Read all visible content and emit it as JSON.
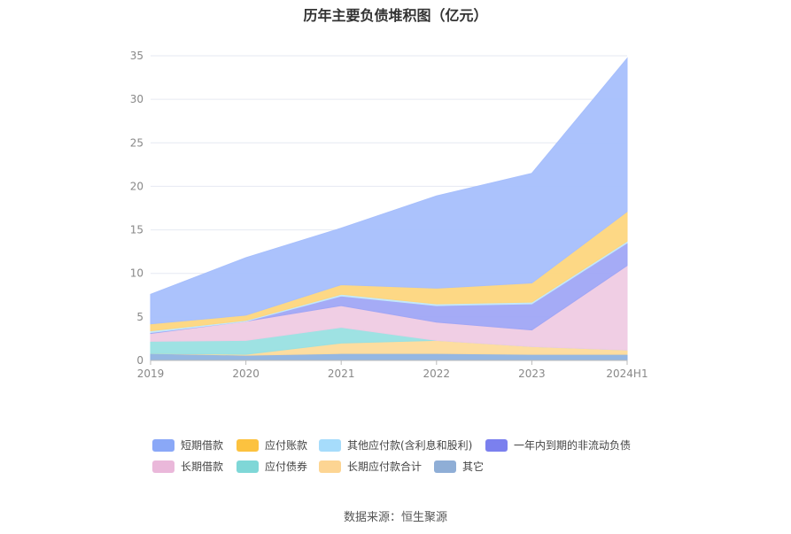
{
  "title": "历年主要负债堆积图（亿元）",
  "source": "数据来源：恒生聚源",
  "chart_data": {
    "type": "area",
    "stacked": true,
    "categories": [
      "2019",
      "2020",
      "2021",
      "2022",
      "2023",
      "2024H1"
    ],
    "ylim": [
      0,
      35
    ],
    "yticks": [
      0,
      5,
      10,
      15,
      20,
      25,
      30,
      35
    ],
    "grid": true,
    "legend_position": "bottom",
    "series": [
      {
        "name": "其它",
        "color": "#8fb3e0",
        "values": [
          0.8,
          0.6,
          0.8,
          0.8,
          0.7,
          0.7
        ]
      },
      {
        "name": "长期应付款合计",
        "color": "#fddb9b",
        "values": [
          0.0,
          0.1,
          1.2,
          1.5,
          0.9,
          0.5
        ]
      },
      {
        "name": "应付债券",
        "color": "#99e0e2",
        "values": [
          1.4,
          1.6,
          1.8,
          0.0,
          0.0,
          0.0
        ]
      },
      {
        "name": "长期借款",
        "color": "#efcbe3",
        "values": [
          0.9,
          2.2,
          2.5,
          2.1,
          1.9,
          9.7
        ]
      },
      {
        "name": "一年内到期的非流动负债",
        "color": "#a0a6f5",
        "values": [
          0.1,
          0.0,
          1.1,
          1.9,
          3.0,
          2.6
        ]
      },
      {
        "name": "其他应付款(含利息和股利)",
        "color": "#c2e7fb",
        "values": [
          0.2,
          0.1,
          0.2,
          0.2,
          0.2,
          0.2
        ]
      },
      {
        "name": "应付账款",
        "color": "#fdd67e",
        "values": [
          0.8,
          0.6,
          1.1,
          1.8,
          2.2,
          3.4
        ]
      },
      {
        "name": "短期借款",
        "color": "#a7bffc",
        "values": [
          3.4,
          6.6,
          6.5,
          10.6,
          12.6,
          17.6
        ]
      }
    ],
    "legend_order": [
      "短期借款",
      "应付账款",
      "其他应付款(含利息和股利)",
      "一年内到期的非流动负债",
      "长期借款",
      "应付债券",
      "长期应付款合计",
      "其它"
    ],
    "legend_colors": [
      "#8aa8f7",
      "#fcc23f",
      "#a6dcfb",
      "#7b80ee",
      "#eab8da",
      "#7fd7d7",
      "#fdd593",
      "#8faed6"
    ]
  }
}
